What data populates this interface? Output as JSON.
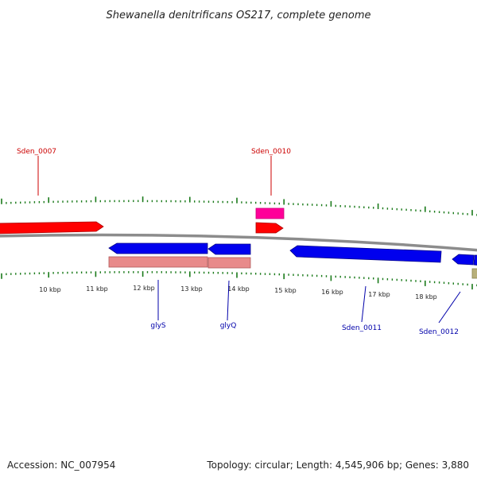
{
  "title": "Shewanella denitrificans OS217, complete genome",
  "footer": {
    "accession": "Accession: NC_007954",
    "summary": "Topology: circular; Length: 4,545,906 bp; Genes: 3,880"
  },
  "colors": {
    "forward_cds": "#ff0000",
    "forward_other": "#ff0099",
    "reverse_cds": "#0000ee",
    "reverse_other": "#e88a8a",
    "misc": "#b8b07a",
    "backbone": "#808080",
    "ticks": "#1a7a1a"
  },
  "scale": {
    "labels": [
      "10 kbp",
      "11 kbp",
      "12 kbp",
      "13 kbp",
      "14 kbp",
      "15 kbp",
      "16 kbp",
      "17 kbp",
      "18 kbp"
    ]
  },
  "genes": {
    "sden_0007": "Sden_0007",
    "sden_0010": "Sden_0010",
    "glys": "glyS",
    "glyq": "glyQ",
    "sden_0011": "Sden_0011",
    "sden_0012": "Sden_0012"
  }
}
